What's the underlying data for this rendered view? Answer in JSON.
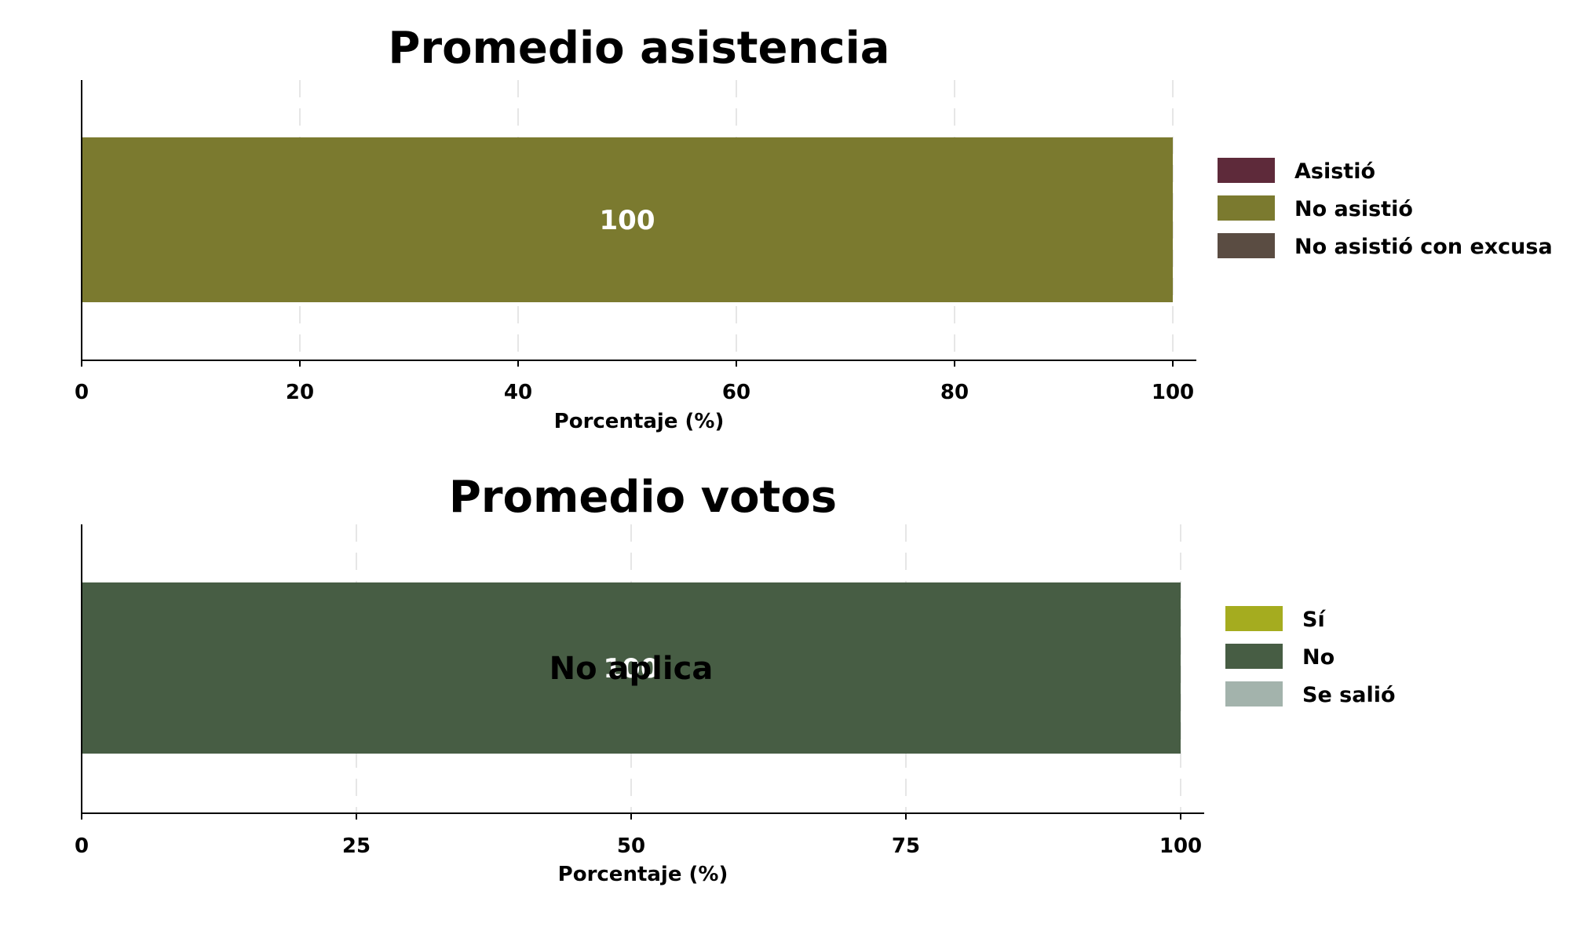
{
  "chart_data": [
    {
      "type": "bar",
      "orientation": "horizontal",
      "stacked": true,
      "title": "Promedio asistencia",
      "xlabel": "Porcentaje (%)",
      "ylabel": "",
      "xlim": [
        0,
        100
      ],
      "xticks": [
        "0",
        "20",
        "40",
        "60",
        "80",
        "100"
      ],
      "grid": "vertical-dashed",
      "legend_position": "right",
      "series": [
        {
          "name": "Asistió",
          "value": 0,
          "color": "#5e2a3a"
        },
        {
          "name": "No asistió",
          "value": 100,
          "color": "#7b7a2f"
        },
        {
          "name": "No asistió con excusa",
          "value": 0,
          "color": "#5a4c42"
        }
      ],
      "data_labels": [
        {
          "series": "No asistió",
          "text": "100"
        }
      ],
      "annotation": ""
    },
    {
      "type": "bar",
      "orientation": "horizontal",
      "stacked": true,
      "title": "Promedio votos",
      "xlabel": "Porcentaje (%)",
      "ylabel": "",
      "xlim": [
        0,
        100
      ],
      "xticks": [
        "0",
        "25",
        "50",
        "75",
        "100"
      ],
      "grid": "vertical-dashed",
      "legend_position": "right",
      "series": [
        {
          "name": "Sí",
          "value": 0,
          "color": "#a5ac1f"
        },
        {
          "name": "No",
          "value": 100,
          "color": "#475d44"
        },
        {
          "name": "Se salió",
          "value": 0,
          "color": "#a3b3ac"
        }
      ],
      "data_labels": [
        {
          "series": "No",
          "text": "100"
        }
      ],
      "annotation": "No aplica"
    }
  ]
}
